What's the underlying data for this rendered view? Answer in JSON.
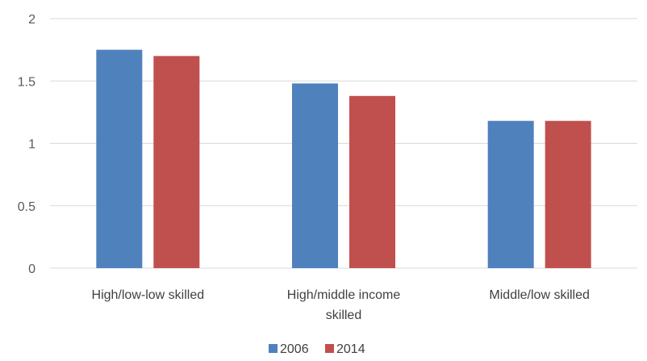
{
  "chart_data": {
    "type": "bar",
    "categories": [
      "High/low-low skilled",
      "High/middle income skilled",
      "Middle/low skilled"
    ],
    "series": [
      {
        "name": "2006",
        "values": [
          1.75,
          1.48,
          1.18
        ],
        "color": "#4F81BD"
      },
      {
        "name": "2014",
        "values": [
          1.7,
          1.38,
          1.18
        ],
        "color": "#C0504D"
      }
    ],
    "ylim": [
      0,
      2
    ],
    "yticks": [
      "0",
      "0.5",
      "1",
      "1.5",
      "2"
    ],
    "grid": true,
    "legend": "bottom",
    "title": "",
    "xlabel": "",
    "ylabel": ""
  }
}
